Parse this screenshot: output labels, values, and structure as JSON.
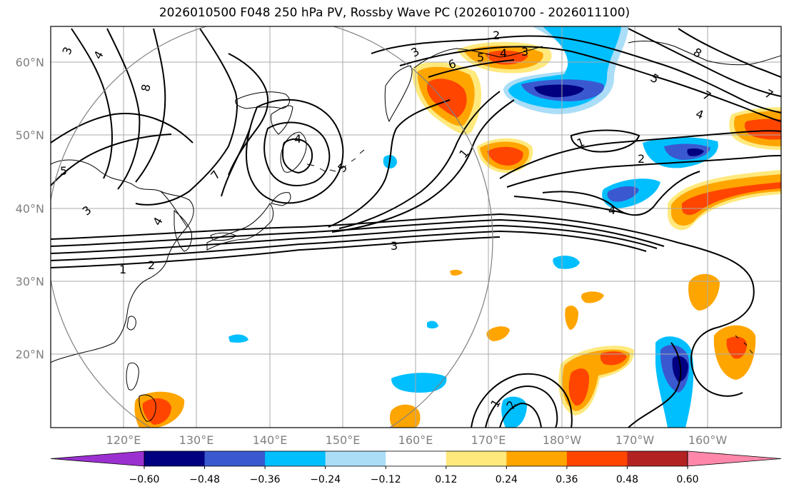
{
  "title": "2026010500 F048 250 hPa PV, Rossby Wave PC (2026010700 - 2026011100)",
  "lat_labels": [
    "60°N",
    "50°N",
    "40°N",
    "30°N",
    "20°N"
  ],
  "lon_labels": [
    "120°E",
    "130°E",
    "140°E",
    "150°E",
    "160°E",
    "170°E",
    "180°W",
    "170°W",
    "160°W"
  ],
  "colorbar": {
    "tick_labels": [
      "−0.60",
      "−0.48",
      "−0.36",
      "−0.24",
      "−0.12",
      "0.12",
      "0.24",
      "0.36",
      "0.48",
      "0.60"
    ],
    "colors": {
      "under": "#9b30d0",
      "c1": "#000080",
      "c2": "#3a59d0",
      "c3": "#00bfff",
      "c4": "#abddf7",
      "neutral": "#ffffff",
      "w1": "#ffe97d",
      "w2": "#ffa500",
      "w3": "#ff4500",
      "w4": "#b22222",
      "over": "#ff88aa"
    }
  },
  "contour_labels": [
    "3",
    "4",
    "8",
    "5",
    "7",
    "4",
    "5",
    "2",
    "6",
    "5",
    "4",
    "3",
    "5",
    "7",
    "4",
    "2",
    "1",
    "2",
    "4",
    "3",
    "1",
    "2",
    "1",
    "1",
    "4",
    "3",
    "3",
    "8",
    "7"
  ]
}
